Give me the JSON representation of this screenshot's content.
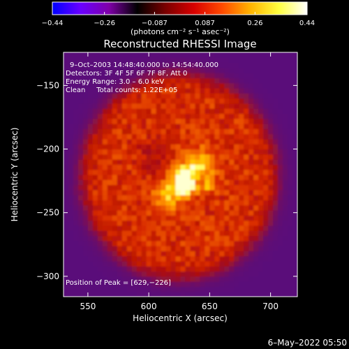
{
  "colorbar": {
    "tick_labels": [
      "−0.44",
      "−0.26",
      "−0.087",
      "0.087",
      "0.26",
      "0.44"
    ],
    "tick_values": [
      -0.44,
      -0.26,
      -0.087,
      0.087,
      0.26,
      0.44
    ],
    "range": [
      -0.44,
      0.44
    ],
    "units_label": "(photons cm⁻² s⁻¹ asec⁻²)",
    "colormap": [
      "#0000ff",
      "#6a00ff",
      "#7f00a8",
      "#000000",
      "#7a0000",
      "#d80000",
      "#ff4a00",
      "#ffb400",
      "#ffff40",
      "#ffffff"
    ]
  },
  "chart_data": {
    "type": "heatmap",
    "title": "Reconstructed RHESSI Image",
    "xlabel": "Heliocentric X (arcsec)",
    "ylabel": "Heliocentric Y (arcsec)",
    "xlim": [
      530,
      722
    ],
    "ylim": [
      -316,
      -124
    ],
    "xticks": [
      550,
      600,
      650,
      700
    ],
    "yticks": [
      -300,
      -250,
      -200,
      -150
    ],
    "xtick_labels": [
      "550",
      "600",
      "650",
      "700"
    ],
    "ytick_labels": [
      "−300",
      "−250",
      "−200",
      "−150"
    ],
    "annotations": [
      "9–Oct–2003 14:48:40.000 to 14:54:40.000",
      "Detectors: 3F 4F 5F 6F 7F 8F, Att 0",
      "Energy Range: 3.0 – 6.0 keV",
      "Clean     Total counts: 1.22E+05"
    ],
    "peak_text": "Position of Peak = [629,−226]",
    "peak": [
      629,
      -226
    ],
    "disk_center": [
      625,
      -221
    ],
    "disk_radius": 79,
    "secondary_source": [
      649,
      -227
    ],
    "grid": false,
    "colorbar_position": "top"
  },
  "footer": {
    "timestamp": "6–May–2022 05:50"
  }
}
